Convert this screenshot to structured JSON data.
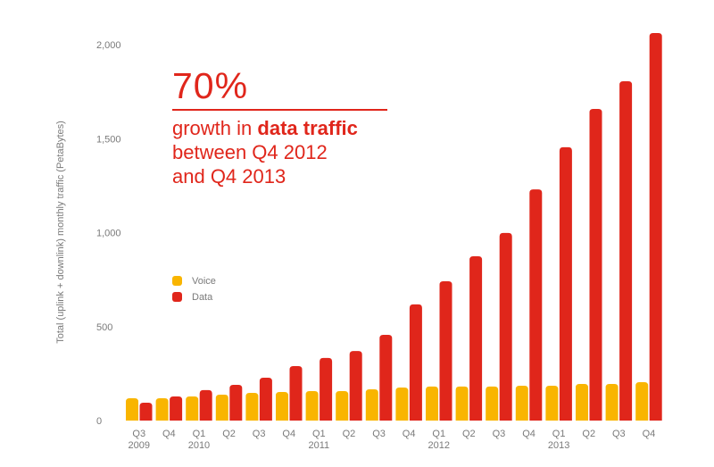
{
  "chart_data": {
    "type": "bar",
    "title": "",
    "xlabel": "",
    "ylabel": "Total (uplink + downlink) monthly traffic (PetaBytes)",
    "ylim": [
      0,
      2000
    ],
    "yticks": [
      0,
      500,
      1000,
      1500,
      2000
    ],
    "ytick_labels": [
      "0",
      "500",
      "1,000",
      "1,500",
      "2,000"
    ],
    "grid": false,
    "legend_position": "center-left",
    "categories": [
      {
        "quarter": "Q3",
        "year": "2009"
      },
      {
        "quarter": "Q4",
        "year": ""
      },
      {
        "quarter": "Q1",
        "year": "2010"
      },
      {
        "quarter": "Q2",
        "year": ""
      },
      {
        "quarter": "Q3",
        "year": ""
      },
      {
        "quarter": "Q4",
        "year": ""
      },
      {
        "quarter": "Q1",
        "year": "2011"
      },
      {
        "quarter": "Q2",
        "year": ""
      },
      {
        "quarter": "Q3",
        "year": ""
      },
      {
        "quarter": "Q4",
        "year": ""
      },
      {
        "quarter": "Q1",
        "year": "2012"
      },
      {
        "quarter": "Q2",
        "year": ""
      },
      {
        "quarter": "Q3",
        "year": ""
      },
      {
        "quarter": "Q4",
        "year": ""
      },
      {
        "quarter": "Q1",
        "year": "2013"
      },
      {
        "quarter": "Q2",
        "year": ""
      },
      {
        "quarter": "Q3",
        "year": ""
      },
      {
        "quarter": "Q4",
        "year": ""
      }
    ],
    "series": [
      {
        "name": "Voice",
        "color": "#f9b500",
        "values": [
          119,
          119,
          128,
          138,
          147,
          152,
          157,
          157,
          166,
          176,
          181,
          181,
          181,
          185,
          185,
          195,
          195,
          204
        ]
      },
      {
        "name": "Data",
        "color": "#e0261b",
        "values": [
          95,
          128,
          162,
          190,
          228,
          290,
          333,
          370,
          456,
          618,
          741,
          874,
          998,
          1230,
          1454,
          1658,
          1805,
          2062
        ]
      }
    ],
    "annotation": {
      "big": "70%",
      "line1_prefix": "growth in ",
      "line1_bold": "data traffic",
      "line2": "between Q4 2012",
      "line3": "and Q4 2013"
    }
  }
}
